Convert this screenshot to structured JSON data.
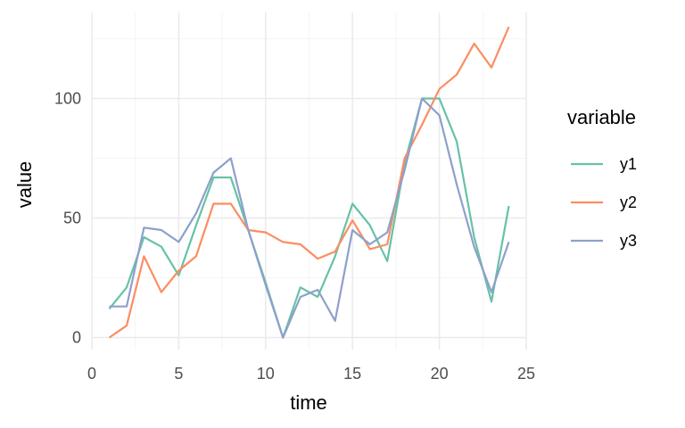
{
  "chart_data": {
    "type": "line",
    "title": "",
    "xlabel": "time",
    "ylabel": "value",
    "xlim": [
      0,
      25
    ],
    "ylim": [
      -5,
      136
    ],
    "x_ticks": [
      0,
      5,
      10,
      15,
      20,
      25
    ],
    "y_ticks": [
      0,
      50,
      100
    ],
    "grid": true,
    "legend": {
      "title": "variable",
      "placement": "right"
    },
    "x": [
      1,
      2,
      3,
      4,
      5,
      6,
      7,
      8,
      9,
      10,
      11,
      12,
      13,
      14,
      15,
      16,
      17,
      18,
      19,
      20,
      21,
      22,
      23,
      24
    ],
    "series": [
      {
        "name": "y1",
        "color": "#66c2a5",
        "values": [
          12,
          21,
          42,
          38,
          26,
          47,
          67,
          67,
          45,
          23,
          0,
          21,
          17,
          34,
          56,
          47,
          32,
          73,
          100,
          100,
          82,
          42,
          15,
          55
        ]
      },
      {
        "name": "y2",
        "color": "#fc8d62",
        "values": [
          0,
          5,
          34,
          19,
          28,
          34,
          56,
          56,
          45,
          44,
          40,
          39,
          33,
          36,
          49,
          37,
          39,
          75,
          89,
          104,
          110,
          123,
          113,
          130
        ]
      },
      {
        "name": "y3",
        "color": "#8da0cb",
        "values": [
          13,
          13,
          46,
          45,
          40,
          52,
          69,
          75,
          45,
          22,
          0,
          17,
          20,
          7,
          45,
          39,
          44,
          70,
          100,
          93,
          64,
          38,
          19,
          40
        ]
      }
    ]
  }
}
